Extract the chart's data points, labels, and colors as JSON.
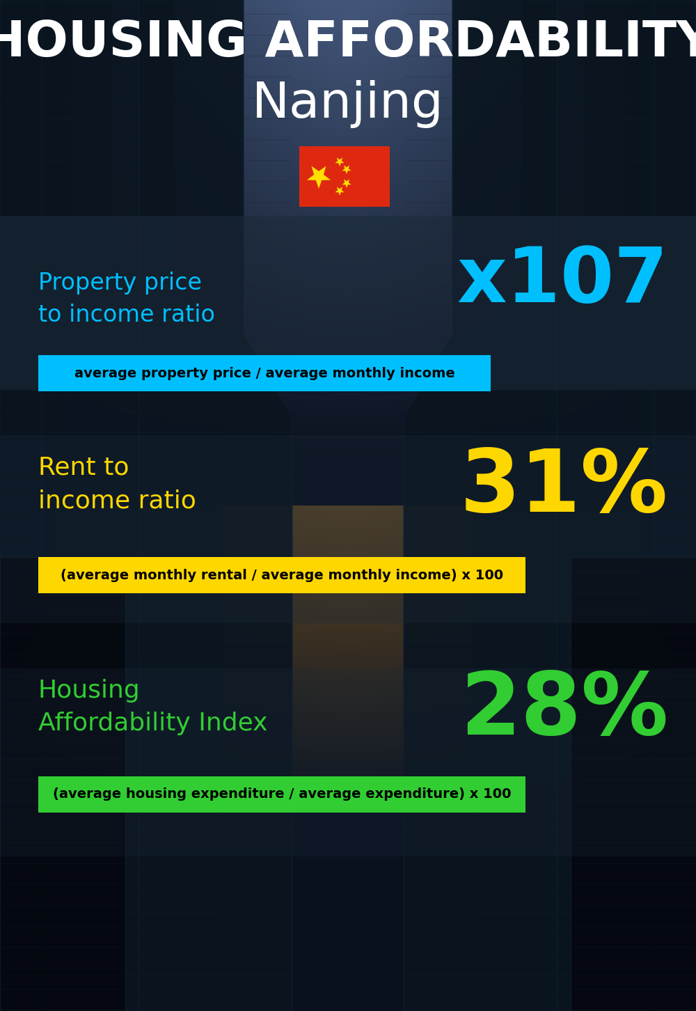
{
  "title_line1": "HOUSING AFFORDABILITY",
  "title_line2": "Nanjing",
  "bg_color": "#0a1018",
  "section1_label": "Property price\nto income ratio",
  "section1_value": "x107",
  "section1_label_color": "#00bfff",
  "section1_value_color": "#00bfff",
  "section1_band_color": "#00bfff",
  "section1_formula": "average property price / average monthly income",
  "section2_label": "Rent to\nincome ratio",
  "section2_value": "31%",
  "section2_label_color": "#FFD700",
  "section2_value_color": "#FFD700",
  "section2_band_color": "#FFD700",
  "section2_formula": "(average monthly rental / average monthly income) x 100",
  "section3_label": "Housing\nAffordability Index",
  "section3_value": "28%",
  "section3_label_color": "#32CD32",
  "section3_value_color": "#32CD32",
  "section3_band_color": "#32CD32",
  "section3_formula": "(average housing expenditure / average expenditure) x 100",
  "band_alpha": 1.0,
  "flag_rect_color": "#DE2910",
  "flag_star_color": "#FFDE00"
}
